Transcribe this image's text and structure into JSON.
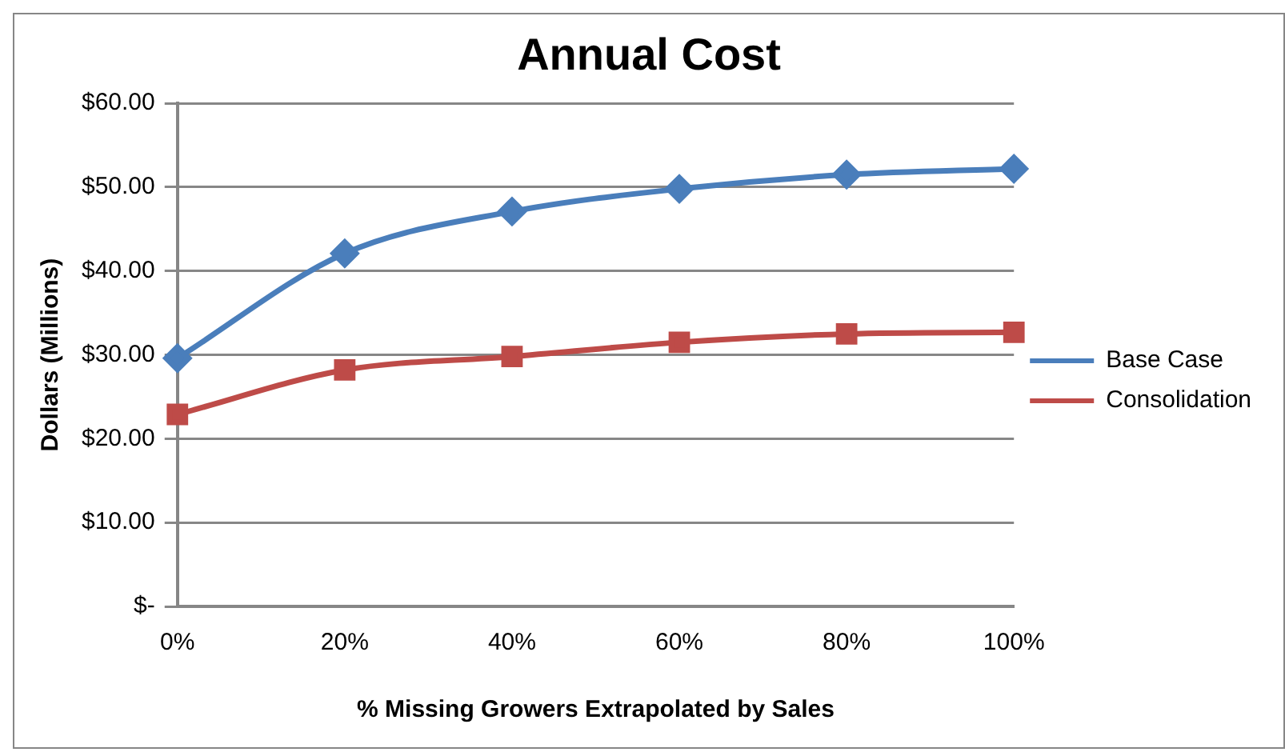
{
  "chart_data": {
    "type": "line",
    "title": "Annual Cost",
    "xlabel": "% Missing Growers Extrapolated by Sales",
    "ylabel": "Dollars (Millions)",
    "categories": [
      "0%",
      "20%",
      "40%",
      "60%",
      "80%",
      "100%"
    ],
    "series": [
      {
        "name": "Base Case",
        "color": "#4a7ebb",
        "marker": "diamond",
        "values": [
          29.6,
          42.1,
          47.1,
          49.8,
          51.5,
          52.2
        ]
      },
      {
        "name": "Consolidation",
        "color": "#be4b48",
        "marker": "square",
        "values": [
          22.9,
          28.2,
          29.8,
          31.5,
          32.5,
          32.7
        ]
      }
    ],
    "ylim": [
      0,
      60
    ],
    "yticks": [
      {
        "value": 0,
        "label": "$-"
      },
      {
        "value": 10,
        "label": "$10.00"
      },
      {
        "value": 20,
        "label": "$20.00"
      },
      {
        "value": 30,
        "label": "$30.00"
      },
      {
        "value": 40,
        "label": "$40.00"
      },
      {
        "value": 50,
        "label": "$50.00"
      },
      {
        "value": 60,
        "label": "$60.00"
      }
    ],
    "grid": "y",
    "legend": "right"
  }
}
